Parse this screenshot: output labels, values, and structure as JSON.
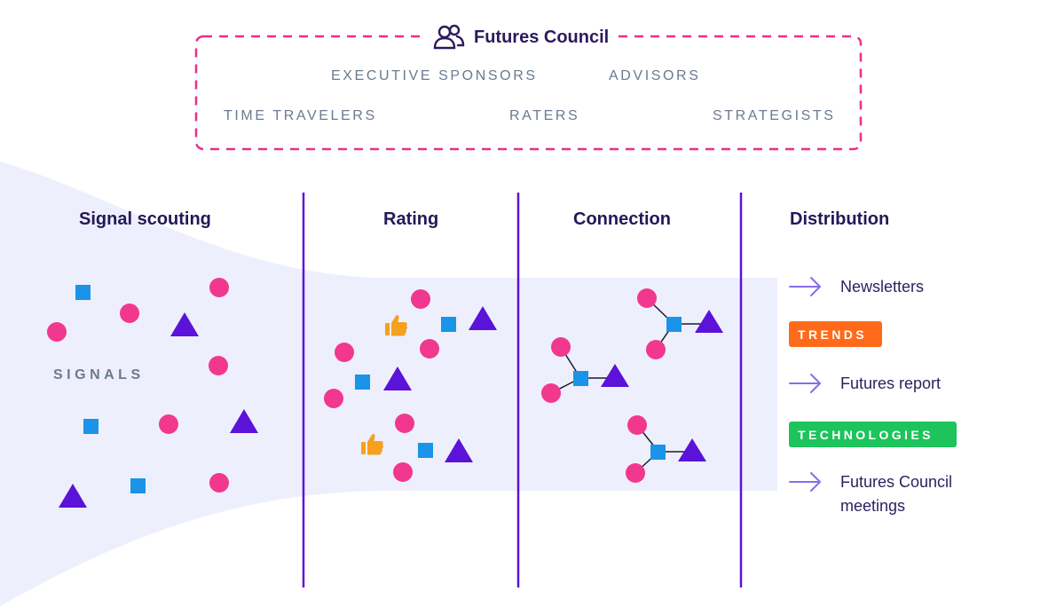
{
  "council": {
    "title": "Futures Council",
    "icon": "people-icon",
    "roles": [
      "EXECUTIVE SPONSORS",
      "ADVISORS",
      "TIME TRAVELERS",
      "RATERS",
      "STRATEGISTS"
    ]
  },
  "stages": [
    "Signal scouting",
    "Rating",
    "Connection",
    "Distribution"
  ],
  "signals_label": "SIGNALS",
  "distribution": {
    "items": [
      {
        "label": "Newsletters"
      },
      {
        "tag": "TRENDS"
      },
      {
        "label": "Futures report"
      },
      {
        "tag": "TECHNOLOGIES"
      },
      {
        "label": "Futures Council meetings",
        "lines": [
          "Futures Council",
          "meetings"
        ]
      }
    ]
  },
  "colors": {
    "circle": "#f2378f",
    "square": "#1a94e8",
    "triangle": "#5b12d9",
    "thumb": "#f6a01f",
    "divider": "#5b12d9",
    "funnel": "#eeeffc",
    "council_border": "#ea2f8e",
    "arrow": "#8a6de6",
    "tag_trends": "#ff6a1a",
    "tag_technologies": "#1dc35b"
  }
}
